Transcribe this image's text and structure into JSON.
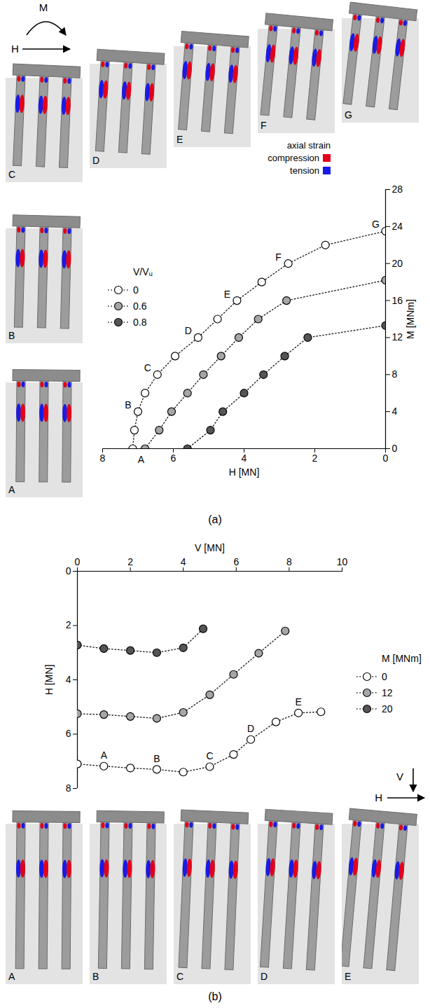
{
  "chart_data": [
    {
      "type": "line",
      "caption": "(a)",
      "x_label": "H [MN]",
      "y_label": "M [MNm]",
      "xlim": [
        8,
        0
      ],
      "xticks": [
        8,
        6,
        4,
        2,
        0
      ],
      "ylim": [
        0,
        28
      ],
      "yticks": [
        0,
        4,
        8,
        12,
        16,
        20,
        24,
        28
      ],
      "grid": false,
      "legend": "top-left",
      "legend_title": "V/Vᵤ",
      "marker": "circle",
      "line_style": "dotted",
      "series": [
        {
          "name": "0",
          "color": "#ffffff",
          "x": [
            7.15,
            7.1,
            7.0,
            6.8,
            6.45,
            5.95,
            5.3,
            4.75,
            4.2,
            3.5,
            2.75,
            1.7,
            0
          ],
          "values": [
            0,
            2,
            4,
            6,
            8,
            10,
            12,
            14,
            16,
            18,
            20,
            22,
            23.5
          ],
          "labels": [
            "A",
            null,
            "B",
            null,
            "C",
            null,
            "D",
            null,
            "E",
            null,
            "F",
            null,
            "G"
          ]
        },
        {
          "name": "0.6",
          "color": "#a6a6a6",
          "x": [
            6.8,
            6.4,
            6.05,
            5.6,
            5.15,
            4.65,
            4.15,
            3.6,
            2.8,
            0
          ],
          "values": [
            0,
            2,
            4,
            6,
            8,
            10,
            12,
            14,
            16,
            18.2
          ]
        },
        {
          "name": "0.8",
          "color": "#555555",
          "x": [
            5.6,
            4.95,
            4.6,
            4.0,
            3.45,
            2.85,
            2.2,
            0
          ],
          "values": [
            0,
            2,
            4,
            6,
            8,
            10,
            12,
            13.3
          ]
        }
      ]
    },
    {
      "type": "line",
      "caption": "(b)",
      "x_label": "V [MN]",
      "y_label": "H [MN]",
      "xlim": [
        0,
        10
      ],
      "xticks": [
        0,
        2,
        4,
        6,
        8,
        10
      ],
      "ylim": [
        8,
        0
      ],
      "yticks": [
        0,
        2,
        4,
        6,
        8
      ],
      "grid": false,
      "legend": "right",
      "legend_title": "M [MNm]",
      "marker": "circle",
      "line_style": "dotted",
      "series": [
        {
          "name": "0",
          "color": "#ffffff",
          "x": [
            0,
            1,
            2,
            3,
            4,
            5,
            5.9,
            6.55,
            7.5,
            8.35,
            9.2
          ],
          "values": [
            7.1,
            7.18,
            7.25,
            7.3,
            7.4,
            7.2,
            6.75,
            6.2,
            5.55,
            5.22,
            5.18
          ],
          "labels": [
            null,
            "A",
            null,
            "B",
            null,
            "C",
            null,
            "D",
            null,
            "E",
            null
          ]
        },
        {
          "name": "12",
          "color": "#a6a6a6",
          "x": [
            0,
            1,
            2,
            3,
            4,
            5,
            5.9,
            6.85,
            7.85
          ],
          "values": [
            5.25,
            5.28,
            5.35,
            5.42,
            5.2,
            4.55,
            3.8,
            3.02,
            2.2
          ]
        },
        {
          "name": "20",
          "color": "#555555",
          "x": [
            0,
            1,
            2,
            3,
            4,
            4.75
          ],
          "values": [
            2.72,
            2.85,
            2.92,
            3.0,
            2.82,
            2.12
          ]
        }
      ]
    }
  ],
  "diagram": {
    "panels_a": [
      "A",
      "B",
      "C",
      "D",
      "E",
      "F",
      "G"
    ],
    "panels_b": [
      "A",
      "B",
      "C",
      "D",
      "E"
    ],
    "loads_a": [
      "M",
      "H"
    ],
    "loads_b": [
      "V",
      "H"
    ],
    "strain_legend": {
      "title": "axial strain",
      "items": [
        {
          "name": "compression",
          "color": "#e3001b"
        },
        {
          "name": "tension",
          "color": "#1a1ae6"
        }
      ]
    }
  }
}
